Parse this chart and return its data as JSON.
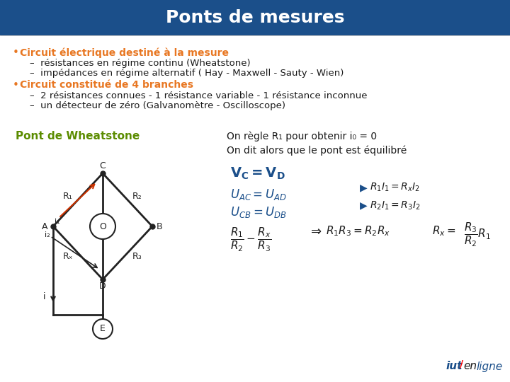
{
  "title": "Ponts de mesures",
  "title_color": "#FFFFFF",
  "header_bg": "#1B4F8A",
  "slide_bg": "#FFFFFF",
  "bullet_color": "#E87722",
  "text_color": "#1A1A1A",
  "green_color": "#5B8C00",
  "blue_color": "#1B4F8A",
  "bullet1": "Circuit électrique destiné à la mesure",
  "sub1a": "résistances en régime continu (Wheatstone)",
  "sub1b": "impédances en régime alternatif ( Hay - Maxwell - Sauty - Wien)",
  "bullet2": "Circuit constitué de 4 branches",
  "sub2a": "2 résistances connues - 1 résistance variable - 1 résistance inconnue",
  "sub2b": "un détecteur de zéro (Galvanomètre - Oscilloscope)",
  "pont_label": "Pont de Wheatstone",
  "eq_label1": "On règle R₁ pour obtenir i₀ = 0",
  "eq_label2": "On dit alors que le pont est équilibré"
}
